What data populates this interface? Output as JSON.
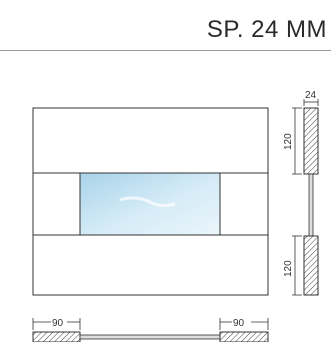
{
  "header": {
    "title": "SP. 24 MM"
  },
  "dimensions": {
    "thickness": "24",
    "upper_panel_height": "120",
    "lower_panel_height": "120",
    "left_width": "90",
    "right_width": "90"
  },
  "colors": {
    "line": "#333333",
    "rule": "#9a9a9a",
    "glass_start": "#a9d3ea",
    "glass_end": "#eaf5fb"
  }
}
